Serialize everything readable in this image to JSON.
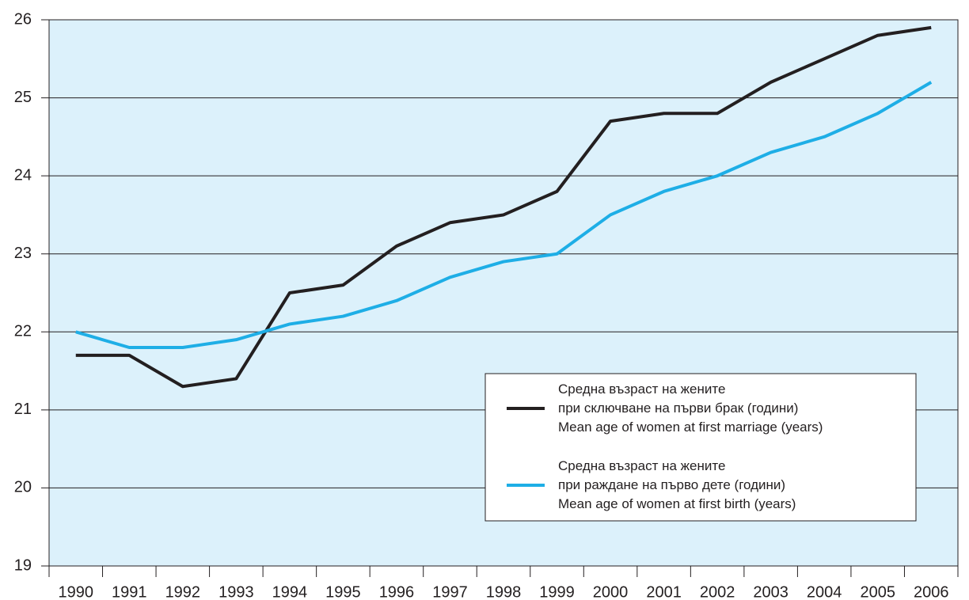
{
  "chart_data": {
    "type": "line",
    "categories": [
      "1990",
      "1991",
      "1992",
      "1993",
      "1994",
      "1995",
      "1996",
      "1997",
      "1998",
      "1999",
      "2000",
      "2001",
      "2002",
      "2003",
      "2004",
      "2005",
      "2006"
    ],
    "series": [
      {
        "name": "Средна възраст на жените\nпри сключване на първи брак (години)\nMean age of women at first marriage (years)",
        "color": "#231f20",
        "values": [
          21.7,
          21.7,
          21.3,
          21.4,
          22.5,
          22.6,
          23.1,
          23.4,
          23.5,
          23.8,
          24.7,
          24.8,
          24.8,
          25.2,
          25.5,
          25.8,
          25.9
        ]
      },
      {
        "name": "Средна възраст на жените\nпри раждане на първо дете (години)\nMean age of women at first birth (years)",
        "color": "#1eaee6",
        "values": [
          22.0,
          21.8,
          21.8,
          21.9,
          22.1,
          22.2,
          22.4,
          22.7,
          22.9,
          23.0,
          23.5,
          23.8,
          24.0,
          24.3,
          24.5,
          24.8,
          25.2
        ]
      }
    ],
    "ylim": [
      19,
      26
    ],
    "yticks": [
      19,
      20,
      21,
      22,
      23,
      24,
      25,
      26
    ],
    "grid": true,
    "legend": "lower right",
    "background": "#dcf1fb"
  }
}
